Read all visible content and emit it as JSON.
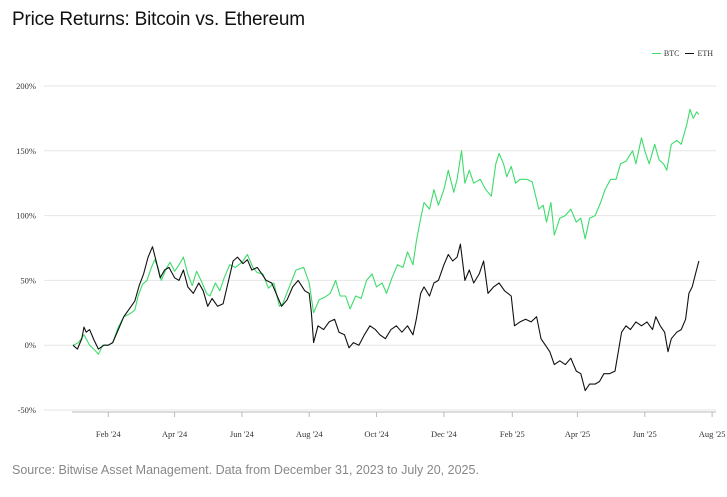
{
  "title": "Price Returns: Bitcoin vs. Ethereum",
  "source": "Source: Bitwise Asset Management. Data from December 31, 2023 to July 20, 2025.",
  "colors": {
    "btc": "#3ddc6b",
    "eth": "#111111",
    "grid": "#e6e6e6",
    "axis": "#bbbbbb"
  },
  "chart_data": {
    "type": "line",
    "title": "Price Returns: Bitcoin vs. Ethereum",
    "xlabel": "",
    "ylabel": "",
    "ylim": [
      -50,
      200
    ],
    "xlim": [
      "2023-12-31",
      "2025-07-31"
    ],
    "grid": true,
    "legend_position": "top-right",
    "y_ticks": [
      {
        "value": 200,
        "label": "200%"
      },
      {
        "value": 150,
        "label": "150%"
      },
      {
        "value": 100,
        "label": "100%"
      },
      {
        "value": 50,
        "label": "50%"
      },
      {
        "value": 0,
        "label": "0%"
      },
      {
        "value": -50,
        "label": "-50%"
      }
    ],
    "x_ticks": [
      {
        "date": "2024-02-01",
        "label": "Feb '24"
      },
      {
        "date": "2024-04-01",
        "label": "Apr '24"
      },
      {
        "date": "2024-06-01",
        "label": "Jun '24"
      },
      {
        "date": "2024-08-01",
        "label": "Aug '24"
      },
      {
        "date": "2024-10-01",
        "label": "Oct '24"
      },
      {
        "date": "2024-12-01",
        "label": "Dec '24"
      },
      {
        "date": "2025-02-01",
        "label": "Feb '25"
      },
      {
        "date": "2025-04-01",
        "label": "Apr '25"
      },
      {
        "date": "2025-06-01",
        "label": "Jun '25"
      },
      {
        "date": "2025-08-01",
        "label": "Aug '25"
      }
    ],
    "series": [
      {
        "name": "BTC",
        "color": "#3ddc6b",
        "points": [
          [
            "2023-12-31",
            0
          ],
          [
            "2024-01-05",
            2
          ],
          [
            "2024-01-10",
            8
          ],
          [
            "2024-01-15",
            0
          ],
          [
            "2024-01-20",
            -4
          ],
          [
            "2024-01-23",
            -7
          ],
          [
            "2024-01-27",
            0
          ],
          [
            "2024-02-01",
            0
          ],
          [
            "2024-02-05",
            2
          ],
          [
            "2024-02-10",
            14
          ],
          [
            "2024-02-15",
            22
          ],
          [
            "2024-02-20",
            24
          ],
          [
            "2024-02-25",
            27
          ],
          [
            "2024-02-28",
            38
          ],
          [
            "2024-03-03",
            47
          ],
          [
            "2024-03-07",
            50
          ],
          [
            "2024-03-11",
            60
          ],
          [
            "2024-03-14",
            66
          ],
          [
            "2024-03-17",
            60
          ],
          [
            "2024-03-20",
            50
          ],
          [
            "2024-03-25",
            60
          ],
          [
            "2024-03-28",
            64
          ],
          [
            "2024-04-01",
            57
          ],
          [
            "2024-04-05",
            62
          ],
          [
            "2024-04-09",
            68
          ],
          [
            "2024-04-13",
            55
          ],
          [
            "2024-04-17",
            46
          ],
          [
            "2024-04-21",
            57
          ],
          [
            "2024-04-25",
            50
          ],
          [
            "2024-04-30",
            40
          ],
          [
            "2024-05-03",
            38
          ],
          [
            "2024-05-08",
            48
          ],
          [
            "2024-05-12",
            42
          ],
          [
            "2024-05-16",
            52
          ],
          [
            "2024-05-21",
            62
          ],
          [
            "2024-05-26",
            60
          ],
          [
            "2024-06-01",
            64
          ],
          [
            "2024-06-06",
            70
          ],
          [
            "2024-06-11",
            60
          ],
          [
            "2024-06-15",
            56
          ],
          [
            "2024-06-20",
            55
          ],
          [
            "2024-06-25",
            44
          ],
          [
            "2024-06-30",
            48
          ],
          [
            "2024-07-05",
            30
          ],
          [
            "2024-07-08",
            32
          ],
          [
            "2024-07-14",
            45
          ],
          [
            "2024-07-20",
            58
          ],
          [
            "2024-07-27",
            60
          ],
          [
            "2024-08-01",
            48
          ],
          [
            "2024-08-05",
            25
          ],
          [
            "2024-08-10",
            35
          ],
          [
            "2024-08-15",
            37
          ],
          [
            "2024-08-20",
            40
          ],
          [
            "2024-08-25",
            50
          ],
          [
            "2024-08-29",
            38
          ],
          [
            "2024-09-03",
            38
          ],
          [
            "2024-09-07",
            28
          ],
          [
            "2024-09-12",
            38
          ],
          [
            "2024-09-17",
            36
          ],
          [
            "2024-09-22",
            50
          ],
          [
            "2024-09-27",
            55
          ],
          [
            "2024-10-01",
            45
          ],
          [
            "2024-10-06",
            48
          ],
          [
            "2024-10-10",
            40
          ],
          [
            "2024-10-15",
            52
          ],
          [
            "2024-10-20",
            62
          ],
          [
            "2024-10-25",
            60
          ],
          [
            "2024-10-29",
            72
          ],
          [
            "2024-11-03",
            62
          ],
          [
            "2024-11-06",
            80
          ],
          [
            "2024-11-10",
            98
          ],
          [
            "2024-11-13",
            110
          ],
          [
            "2024-11-18",
            105
          ],
          [
            "2024-11-22",
            120
          ],
          [
            "2024-11-26",
            108
          ],
          [
            "2024-12-01",
            120
          ],
          [
            "2024-12-05",
            135
          ],
          [
            "2024-12-10",
            118
          ],
          [
            "2024-12-13",
            128
          ],
          [
            "2024-12-17",
            150
          ],
          [
            "2024-12-20",
            125
          ],
          [
            "2024-12-24",
            135
          ],
          [
            "2024-12-28",
            125
          ],
          [
            "2025-01-03",
            128
          ],
          [
            "2025-01-08",
            120
          ],
          [
            "2025-01-13",
            115
          ],
          [
            "2025-01-17",
            140
          ],
          [
            "2025-01-20",
            148
          ],
          [
            "2025-01-24",
            140
          ],
          [
            "2025-01-27",
            130
          ],
          [
            "2025-01-31",
            138
          ],
          [
            "2025-02-04",
            125
          ],
          [
            "2025-02-08",
            128
          ],
          [
            "2025-02-14",
            128
          ],
          [
            "2025-02-19",
            126
          ],
          [
            "2025-02-25",
            105
          ],
          [
            "2025-03-01",
            108
          ],
          [
            "2025-03-04",
            95
          ],
          [
            "2025-03-08",
            110
          ],
          [
            "2025-03-11",
            85
          ],
          [
            "2025-03-16",
            98
          ],
          [
            "2025-03-21",
            100
          ],
          [
            "2025-03-26",
            105
          ],
          [
            "2025-03-31",
            95
          ],
          [
            "2025-04-04",
            98
          ],
          [
            "2025-04-08",
            82
          ],
          [
            "2025-04-12",
            98
          ],
          [
            "2025-04-17",
            100
          ],
          [
            "2025-04-22",
            110
          ],
          [
            "2025-04-26",
            120
          ],
          [
            "2025-05-01",
            128
          ],
          [
            "2025-05-06",
            128
          ],
          [
            "2025-05-10",
            140
          ],
          [
            "2025-05-15",
            142
          ],
          [
            "2025-05-21",
            150
          ],
          [
            "2025-05-24",
            140
          ],
          [
            "2025-05-29",
            160
          ],
          [
            "2025-06-01",
            150
          ],
          [
            "2025-06-05",
            140
          ],
          [
            "2025-06-10",
            155
          ],
          [
            "2025-06-14",
            143
          ],
          [
            "2025-06-18",
            140
          ],
          [
            "2025-06-21",
            135
          ],
          [
            "2025-06-25",
            155
          ],
          [
            "2025-06-30",
            158
          ],
          [
            "2025-07-04",
            155
          ],
          [
            "2025-07-09",
            170
          ],
          [
            "2025-07-12",
            182
          ],
          [
            "2025-07-15",
            175
          ],
          [
            "2025-07-18",
            180
          ],
          [
            "2025-07-20",
            178
          ]
        ]
      },
      {
        "name": "ETH",
        "color": "#111111",
        "points": [
          [
            "2023-12-31",
            0
          ],
          [
            "2024-01-04",
            -3
          ],
          [
            "2024-01-08",
            5
          ],
          [
            "2024-01-10",
            14
          ],
          [
            "2024-01-12",
            10
          ],
          [
            "2024-01-15",
            12
          ],
          [
            "2024-01-19",
            4
          ],
          [
            "2024-01-23",
            -3
          ],
          [
            "2024-01-28",
            0
          ],
          [
            "2024-02-01",
            0
          ],
          [
            "2024-02-05",
            2
          ],
          [
            "2024-02-10",
            12
          ],
          [
            "2024-02-15",
            22
          ],
          [
            "2024-02-20",
            28
          ],
          [
            "2024-02-25",
            34
          ],
          [
            "2024-02-29",
            46
          ],
          [
            "2024-03-04",
            55
          ],
          [
            "2024-03-08",
            68
          ],
          [
            "2024-03-12",
            76
          ],
          [
            "2024-03-15",
            66
          ],
          [
            "2024-03-19",
            52
          ],
          [
            "2024-03-23",
            58
          ],
          [
            "2024-03-27",
            60
          ],
          [
            "2024-04-01",
            52
          ],
          [
            "2024-04-05",
            50
          ],
          [
            "2024-04-09",
            58
          ],
          [
            "2024-04-13",
            45
          ],
          [
            "2024-04-18",
            40
          ],
          [
            "2024-04-23",
            48
          ],
          [
            "2024-04-27",
            42
          ],
          [
            "2024-05-01",
            30
          ],
          [
            "2024-05-05",
            36
          ],
          [
            "2024-05-10",
            30
          ],
          [
            "2024-05-15",
            32
          ],
          [
            "2024-05-20",
            50
          ],
          [
            "2024-05-24",
            65
          ],
          [
            "2024-05-28",
            68
          ],
          [
            "2024-06-02",
            63
          ],
          [
            "2024-06-06",
            66
          ],
          [
            "2024-06-10",
            58
          ],
          [
            "2024-06-15",
            60
          ],
          [
            "2024-06-19",
            55
          ],
          [
            "2024-06-23",
            50
          ],
          [
            "2024-06-28",
            48
          ],
          [
            "2024-07-03",
            38
          ],
          [
            "2024-07-07",
            30
          ],
          [
            "2024-07-12",
            35
          ],
          [
            "2024-07-17",
            45
          ],
          [
            "2024-07-22",
            50
          ],
          [
            "2024-07-28",
            42
          ],
          [
            "2024-08-01",
            40
          ],
          [
            "2024-08-03",
            25
          ],
          [
            "2024-08-05",
            2
          ],
          [
            "2024-08-09",
            15
          ],
          [
            "2024-08-14",
            12
          ],
          [
            "2024-08-19",
            18
          ],
          [
            "2024-08-24",
            20
          ],
          [
            "2024-08-28",
            10
          ],
          [
            "2024-09-02",
            8
          ],
          [
            "2024-09-06",
            -2
          ],
          [
            "2024-09-10",
            2
          ],
          [
            "2024-09-15",
            0
          ],
          [
            "2024-09-20",
            8
          ],
          [
            "2024-09-25",
            15
          ],
          [
            "2024-09-30",
            12
          ],
          [
            "2024-10-04",
            8
          ],
          [
            "2024-10-09",
            5
          ],
          [
            "2024-10-14",
            12
          ],
          [
            "2024-10-19",
            15
          ],
          [
            "2024-10-24",
            10
          ],
          [
            "2024-10-29",
            15
          ],
          [
            "2024-11-03",
            8
          ],
          [
            "2024-11-06",
            20
          ],
          [
            "2024-11-10",
            40
          ],
          [
            "2024-11-13",
            45
          ],
          [
            "2024-11-18",
            38
          ],
          [
            "2024-11-22",
            48
          ],
          [
            "2024-11-26",
            50
          ],
          [
            "2024-12-01",
            62
          ],
          [
            "2024-12-05",
            70
          ],
          [
            "2024-12-09",
            65
          ],
          [
            "2024-12-13",
            68
          ],
          [
            "2024-12-16",
            78
          ],
          [
            "2024-12-20",
            50
          ],
          [
            "2024-12-24",
            58
          ],
          [
            "2024-12-28",
            48
          ],
          [
            "2025-01-02",
            55
          ],
          [
            "2025-01-06",
            65
          ],
          [
            "2025-01-10",
            40
          ],
          [
            "2025-01-15",
            45
          ],
          [
            "2025-01-20",
            48
          ],
          [
            "2025-01-25",
            42
          ],
          [
            "2025-01-31",
            38
          ],
          [
            "2025-02-03",
            15
          ],
          [
            "2025-02-08",
            18
          ],
          [
            "2025-02-13",
            20
          ],
          [
            "2025-02-18",
            18
          ],
          [
            "2025-02-23",
            22
          ],
          [
            "2025-02-27",
            5
          ],
          [
            "2025-03-03",
            0
          ],
          [
            "2025-03-07",
            -5
          ],
          [
            "2025-03-11",
            -15
          ],
          [
            "2025-03-16",
            -12
          ],
          [
            "2025-03-21",
            -15
          ],
          [
            "2025-03-26",
            -10
          ],
          [
            "2025-03-31",
            -20
          ],
          [
            "2025-04-04",
            -22
          ],
          [
            "2025-04-08",
            -35
          ],
          [
            "2025-04-12",
            -30
          ],
          [
            "2025-04-17",
            -30
          ],
          [
            "2025-04-21",
            -28
          ],
          [
            "2025-04-25",
            -22
          ],
          [
            "2025-04-30",
            -22
          ],
          [
            "2025-05-05",
            -20
          ],
          [
            "2025-05-08",
            -5
          ],
          [
            "2025-05-11",
            10
          ],
          [
            "2025-05-15",
            15
          ],
          [
            "2025-05-19",
            12
          ],
          [
            "2025-05-24",
            18
          ],
          [
            "2025-05-29",
            15
          ],
          [
            "2025-06-03",
            18
          ],
          [
            "2025-06-08",
            12
          ],
          [
            "2025-06-11",
            22
          ],
          [
            "2025-06-15",
            15
          ],
          [
            "2025-06-19",
            10
          ],
          [
            "2025-06-22",
            -5
          ],
          [
            "2025-06-25",
            5
          ],
          [
            "2025-06-30",
            10
          ],
          [
            "2025-07-04",
            12
          ],
          [
            "2025-07-08",
            20
          ],
          [
            "2025-07-11",
            40
          ],
          [
            "2025-07-14",
            45
          ],
          [
            "2025-07-17",
            55
          ],
          [
            "2025-07-20",
            65
          ]
        ]
      }
    ]
  }
}
